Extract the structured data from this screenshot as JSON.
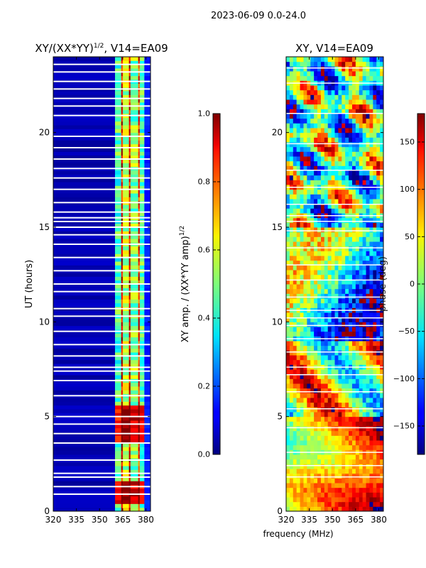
{
  "figure": {
    "suptitle": "2023-06-09 0.0-24.0",
    "shared_xlabel": "frequency (MHz)"
  },
  "chart_data": [
    {
      "type": "heatmap",
      "title_prefix": "XY/(XX*YY)",
      "title_exponent": "1/2",
      "title_suffix": ", V14=EA09",
      "xlabel": "",
      "ylabel": "UT (hours)",
      "xlim": [
        320,
        383
      ],
      "ylim": [
        0,
        24
      ],
      "xticks": [
        320,
        335,
        350,
        365,
        380
      ],
      "yticks": [
        0,
        5,
        10,
        15,
        20
      ],
      "colorbar": {
        "label_prefix": "XY amp. / (XX*YY amp)",
        "label_exponent": "1/2",
        "range": [
          0.0,
          1.0
        ],
        "ticks": [
          "0.0",
          "0.2",
          "0.4",
          "0.6",
          "0.8",
          "1.0"
        ],
        "tick_values": [
          0.0,
          0.2,
          0.4,
          0.6,
          0.8,
          1.0
        ]
      },
      "bands": [
        {
          "f_start": 320,
          "f_end": 360,
          "level": 0.05
        },
        {
          "f_start": 360,
          "f_end": 364,
          "level": 0.45
        },
        {
          "f_start": 364,
          "f_end": 365,
          "level": 0.9
        },
        {
          "f_start": 365,
          "f_end": 369,
          "level": 0.55
        },
        {
          "f_start": 369,
          "f_end": 370,
          "level": 0.9
        },
        {
          "f_start": 370,
          "f_end": 375,
          "level": 0.5
        },
        {
          "f_start": 375,
          "f_end": 376,
          "level": 0.85
        },
        {
          "f_start": 376,
          "f_end": 379,
          "level": 0.45
        },
        {
          "f_start": 379,
          "f_end": 383,
          "level": 0.15
        }
      ],
      "high_periods_hours": [
        [
          0.3,
          1.6
        ],
        [
          3.6,
          5.6
        ]
      ],
      "flag_gap_hours": [
        0.9,
        1.3,
        1.8,
        2.0,
        2.7,
        3.6,
        4.1,
        4.6,
        5.0,
        6.1,
        6.9,
        7.4,
        7.6,
        8.2,
        8.8,
        9.5,
        10.3,
        10.7,
        11.6,
        12.0,
        12.7,
        13.4,
        14.1,
        14.6,
        15.0,
        15.3,
        15.5,
        15.8,
        16.3,
        17.0,
        17.6,
        18.1,
        18.6,
        19.2,
        19.8,
        20.9,
        21.4,
        21.8,
        22.3,
        22.7,
        23.2,
        23.6
      ]
    },
    {
      "type": "heatmap",
      "title": "XY, V14=EA09",
      "xlabel": "frequency (MHz)",
      "ylabel": "",
      "xlim": [
        320,
        383
      ],
      "ylim": [
        0,
        24
      ],
      "xticks": [
        320,
        335,
        350,
        365,
        380
      ],
      "yticks": [
        0,
        5,
        10,
        15,
        20
      ],
      "colorbar": {
        "label": "phase (deg)",
        "range": [
          -180,
          180
        ],
        "ticks": [
          "−150",
          "−100",
          "−50",
          "0",
          "50",
          "100",
          "150"
        ],
        "tick_values": [
          -150,
          -100,
          -50,
          0,
          50,
          100,
          150
        ]
      },
      "flag_gap_hours": [
        1.8,
        2.4,
        3.1,
        4.4,
        5.4,
        6.3,
        7.2,
        7.6,
        8.4,
        9.1,
        9.8,
        10.2,
        10.6,
        11.3,
        12.2,
        13.0,
        13.9,
        14.8,
        15.3,
        15.6,
        16.2,
        17.1,
        18.0,
        19.4,
        21.0,
        22.6,
        23.4
      ]
    }
  ]
}
